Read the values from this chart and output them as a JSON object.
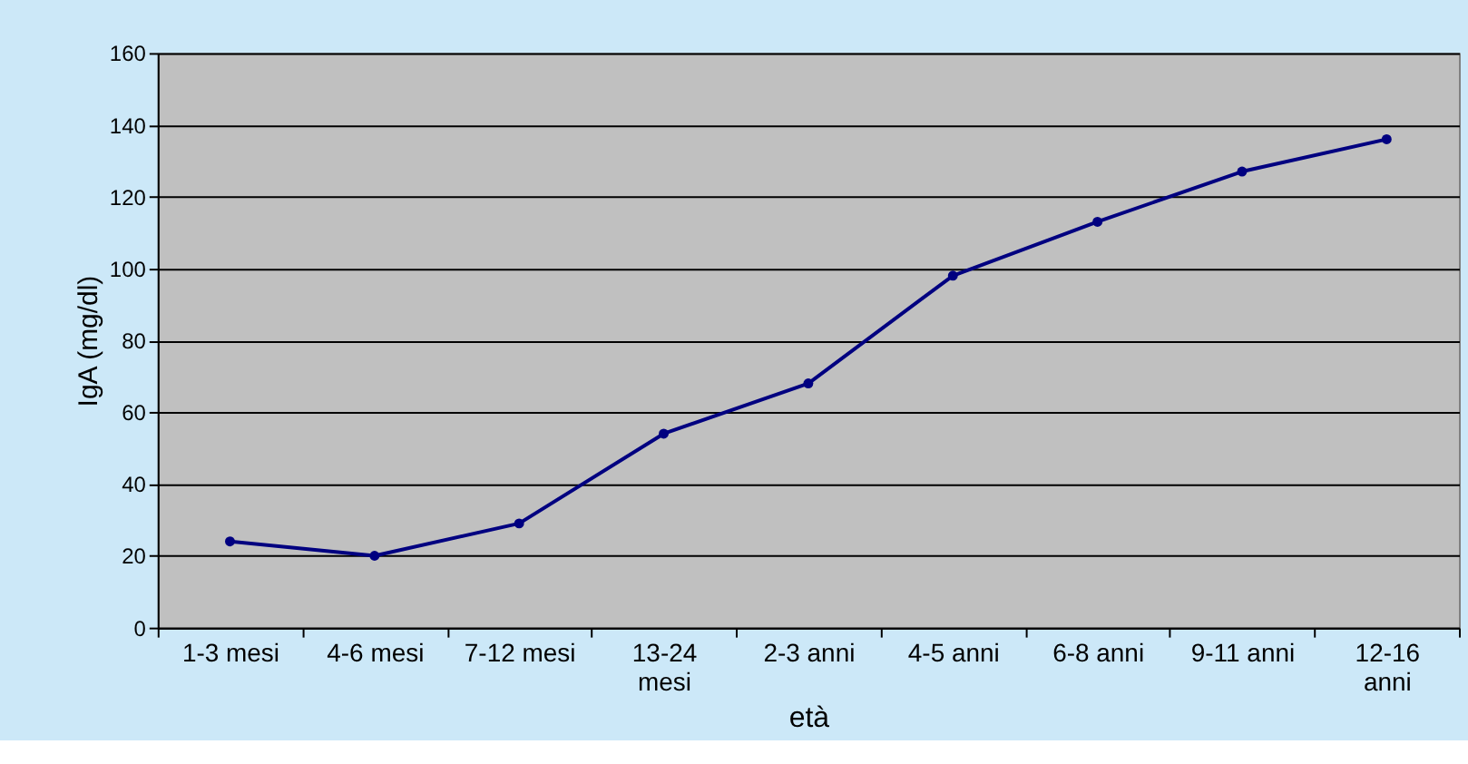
{
  "chart_data": {
    "type": "line",
    "xlabel": "età",
    "ylabel": "IgA (mg/dl)",
    "categories": [
      "1-3 mesi",
      "4-6 mesi",
      "7-12 mesi",
      "13-24 mesi",
      "2-3 anni",
      "4-5 anni",
      "6-8 anni",
      "9-11 anni",
      "12-16 anni"
    ],
    "series": [
      {
        "color": "#000080",
        "values": [
          24,
          20,
          29,
          54,
          68,
          98,
          113,
          127,
          136
        ]
      }
    ],
    "ylim": [
      0,
      160
    ],
    "yticks": [
      0,
      20,
      40,
      60,
      80,
      100,
      120,
      140,
      160
    ],
    "grid": "y",
    "marker": "circle"
  }
}
